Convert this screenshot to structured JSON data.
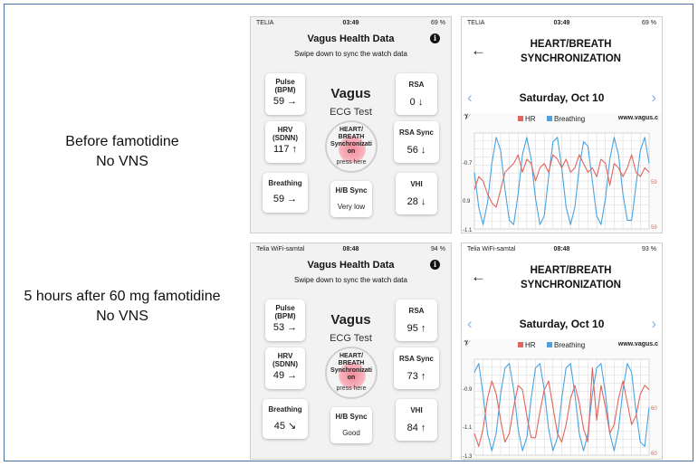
{
  "rows": [
    {
      "label_line1": "Before famotidine",
      "label_line2": "No VNS",
      "left_phone": {
        "status": {
          "carrier": "TELIA",
          "time": "03:49",
          "battery": "69 %"
        },
        "title": "Vagus Health Data",
        "subtitle": "Swipe down to sync the watch data",
        "vagus_title": "Vagus",
        "ecg_label": "ECG Test",
        "pulse": {
          "label_line1": "Pulse",
          "label_line2": "(BPM)",
          "value": "59",
          "arrow": "→"
        },
        "hrv": {
          "label_line1": "HRV",
          "label_line2": "(SDNN)",
          "value": "117",
          "arrow": "↑"
        },
        "breathing": {
          "label": "Breathing",
          "value": "59",
          "arrow": "→"
        },
        "rsa": {
          "label": "RSA",
          "value": "0",
          "arrow": "↓"
        },
        "rsa_sync": {
          "label": "RSA Sync",
          "value": "56",
          "arrow": "↓"
        },
        "vhi": {
          "label": "VHI",
          "value": "28",
          "arrow": "↓"
        },
        "hb_sync": {
          "label": "H/B Sync",
          "value": "Very low"
        },
        "heart_button": {
          "line1": "HEART/",
          "line2": "BREATH",
          "line3": "Synchronizati",
          "line4": "on",
          "press": "press here"
        }
      },
      "right_phone": {
        "status": {
          "carrier": "TELIA",
          "time": "03:49",
          "battery": "69 %"
        },
        "title_line1": "HEART/BREATH",
        "title_line2": "SYNCHRONIZATION",
        "date": "Saturday, Oct 10",
        "legend_hr": "HR",
        "legend_breathing": "Breathing",
        "site": "www.vagus.c",
        "chart_data": {
          "type": "line",
          "title": "",
          "xlabel": "",
          "ylabel": "",
          "left_axis_ticks": [
            "-0.7",
            "0.9",
            "-1.1"
          ],
          "right_axis_ticks": [
            "59",
            "59"
          ],
          "ylim": [
            -1.1,
            1.1
          ],
          "x": [
            0,
            1,
            2,
            3,
            4,
            5,
            6,
            7,
            8,
            9,
            10,
            11,
            12,
            13,
            14,
            15,
            16,
            17,
            18,
            19,
            20,
            21,
            22,
            23,
            24,
            25,
            26,
            27,
            28,
            29,
            30,
            31,
            32,
            33,
            34,
            35,
            36,
            37,
            38,
            39,
            40
          ],
          "series": [
            {
              "name": "Breathing",
              "color": "#4aa3df",
              "values": [
                0.2,
                -0.6,
                -1.0,
                -0.5,
                0.4,
                1.0,
                0.7,
                -0.2,
                -0.9,
                -1.0,
                -0.3,
                0.6,
                1.0,
                0.5,
                -0.4,
                -1.0,
                -0.8,
                0.1,
                0.9,
                1.0,
                0.3,
                -0.6,
                -1.0,
                -0.6,
                0.3,
                0.9,
                0.8,
                0.0,
                -0.8,
                -1.0,
                -0.4,
                0.5,
                1.0,
                0.6,
                -0.3,
                -0.9,
                -0.9,
                -0.1,
                0.7,
                1.0,
                0.4
              ]
            },
            {
              "name": "HR",
              "color": "#e0645f",
              "values": [
                -0.2,
                0.1,
                0.0,
                -0.3,
                -0.5,
                -0.6,
                -0.2,
                0.2,
                0.3,
                0.4,
                0.6,
                0.2,
                0.5,
                0.4,
                0.0,
                0.3,
                0.4,
                0.2,
                0.6,
                0.5,
                0.3,
                0.5,
                0.2,
                0.3,
                0.6,
                0.4,
                0.2,
                0.3,
                0.1,
                0.5,
                0.4,
                -0.1,
                0.4,
                0.3,
                0.1,
                0.3,
                0.6,
                0.2,
                0.1,
                0.3,
                0.2
              ]
            }
          ]
        }
      }
    },
    {
      "label_line1": "5 hours after 60 mg famotidine",
      "label_line2": "No VNS",
      "left_phone": {
        "status": {
          "carrier": "Telia WiFi-samtal",
          "time": "08:48",
          "battery": "94 %"
        },
        "title": "Vagus Health Data",
        "subtitle": "Swipe down to sync the watch data",
        "vagus_title": "Vagus",
        "ecg_label": "ECG Test",
        "pulse": {
          "label_line1": "Pulse",
          "label_line2": "(BPM)",
          "value": "53",
          "arrow": "→"
        },
        "hrv": {
          "label_line1": "HRV",
          "label_line2": "(SDNN)",
          "value": "49",
          "arrow": "→"
        },
        "breathing": {
          "label": "Breathing",
          "value": "45",
          "arrow": "↘"
        },
        "rsa": {
          "label": "RSA",
          "value": "95",
          "arrow": "↑"
        },
        "rsa_sync": {
          "label": "RSA Sync",
          "value": "73",
          "arrow": "↑"
        },
        "vhi": {
          "label": "VHI",
          "value": "84",
          "arrow": "↑"
        },
        "hb_sync": {
          "label": "H/B Sync",
          "value": "Good"
        },
        "heart_button": {
          "line1": "HEART/",
          "line2": "BREATH",
          "line3": "Synchronizati",
          "line4": "on",
          "press": "press here"
        }
      },
      "right_phone": {
        "status": {
          "carrier": "Telia WiFi-samtal",
          "time": "08:48",
          "battery": "93 %"
        },
        "title_line1": "HEART/BREATH",
        "title_line2": "SYNCHRONIZATION",
        "date": "Saturday, Oct 10",
        "legend_hr": "HR",
        "legend_breathing": "Breathing",
        "site": "www.vagus.c",
        "chart_data": {
          "type": "line",
          "title": "",
          "xlabel": "",
          "ylabel": "",
          "left_axis_ticks": [
            "-0.9",
            "-1.1",
            "-1.3"
          ],
          "right_axis_ticks": [
            "60",
            "60"
          ],
          "ylim": [
            -1.1,
            1.1
          ],
          "x": [
            0,
            1,
            2,
            3,
            4,
            5,
            6,
            7,
            8,
            9,
            10,
            11,
            12,
            13,
            14,
            15,
            16,
            17,
            18,
            19,
            20,
            21,
            22,
            23,
            24,
            25,
            26,
            27,
            28,
            29,
            30,
            31,
            32,
            33,
            34,
            35,
            36,
            37,
            38,
            39,
            40
          ],
          "series": [
            {
              "name": "Breathing",
              "color": "#4aa3df",
              "values": [
                0.8,
                1.0,
                0.3,
                -0.6,
                -1.0,
                -0.6,
                0.3,
                0.9,
                1.0,
                0.4,
                -0.5,
                -1.0,
                -0.7,
                0.2,
                0.9,
                1.0,
                0.4,
                -0.5,
                -1.0,
                -0.7,
                0.2,
                0.9,
                1.0,
                0.3,
                -0.6,
                -1.0,
                -0.6,
                0.3,
                0.9,
                1.0,
                0.3,
                -0.6,
                -1.0,
                -0.5,
                0.4,
                1.0,
                0.8,
                -0.1,
                -0.8,
                -0.9,
                0.0
              ]
            },
            {
              "name": "HR",
              "color": "#e0645f",
              "values": [
                -0.6,
                -0.9,
                -0.5,
                0.2,
                0.6,
                0.3,
                -0.3,
                -0.8,
                -0.6,
                0.0,
                0.5,
                0.4,
                -0.2,
                -0.7,
                -0.7,
                -0.1,
                0.4,
                0.6,
                0.0,
                -0.6,
                -0.8,
                -0.4,
                0.2,
                0.5,
                0.1,
                -0.5,
                -0.8,
                0.9,
                -0.3,
                0.5,
                0.0,
                -0.6,
                -0.4,
                0.2,
                0.6,
                0.1,
                -0.4,
                -0.2,
                0.3,
                0.5,
                0.4
              ]
            }
          ]
        }
      }
    }
  ]
}
